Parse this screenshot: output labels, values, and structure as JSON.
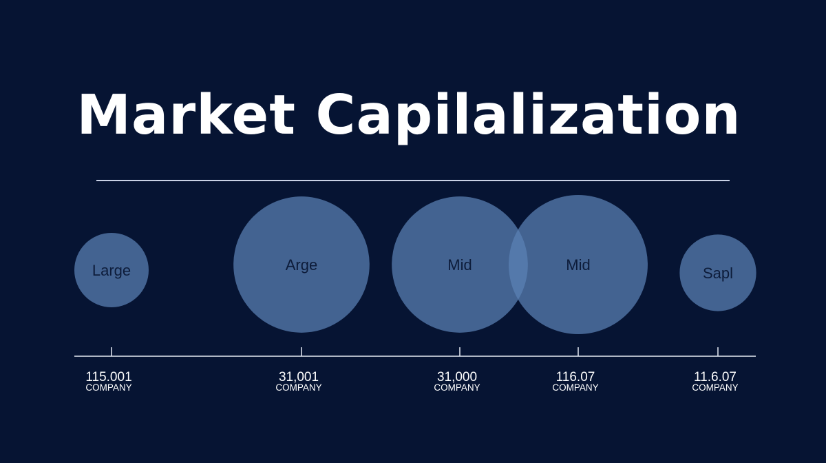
{
  "title": "Market Capilalization",
  "chart_data": {
    "type": "bubble",
    "title": "Market Capilalization",
    "grid": false,
    "legend": "none",
    "bubble_color": "#5b82b6",
    "background_color": "#061433",
    "points": [
      {
        "label": "Large",
        "value": "115.001",
        "category": "COMPANY",
        "size": 1.0
      },
      {
        "label": "Arge",
        "value": "31,001",
        "category": "COMPANY",
        "size": 1.83
      },
      {
        "label": "Mid",
        "value": "31,000",
        "category": "COMPANY",
        "size": 1.83
      },
      {
        "label": "Mid",
        "value": "116.07",
        "category": "COMPANY",
        "size": 1.87
      },
      {
        "label": "Sapl",
        "value": "11.6.07",
        "category": "COMPANY",
        "size": 1.03
      }
    ]
  }
}
